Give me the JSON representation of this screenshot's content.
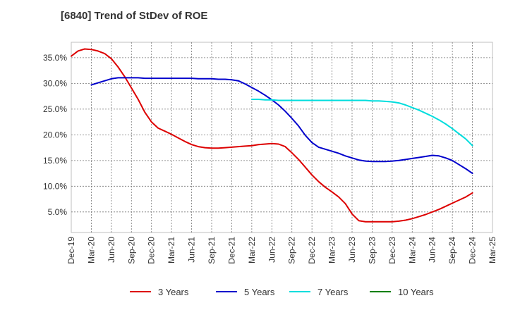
{
  "chart_data": {
    "type": "line",
    "title": "[6840]  Trend of StDev of ROE",
    "xlabel": "",
    "ylabel": "",
    "x_ticks": [
      "Dec-19",
      "Mar-20",
      "Jun-20",
      "Sep-20",
      "Dec-20",
      "Mar-21",
      "Jun-21",
      "Sep-21",
      "Dec-21",
      "Mar-22",
      "Jun-22",
      "Sep-22",
      "Dec-22",
      "Mar-23",
      "Jun-23",
      "Sep-23",
      "Dec-23",
      "Mar-24",
      "Jun-24",
      "Sep-24",
      "Dec-24",
      "Mar-25"
    ],
    "y_ticks": [
      "5.0%",
      "10.0%",
      "15.0%",
      "20.0%",
      "25.0%",
      "30.0%",
      "35.0%"
    ],
    "y_tick_values": [
      5,
      10,
      15,
      20,
      25,
      30,
      35
    ],
    "ylim": [
      1,
      38
    ],
    "grid": true,
    "legend_position": "bottom",
    "series": [
      {
        "name": "3 Years",
        "color": "#dd0000",
        "x": [
          "Dec-19",
          "Jan-20",
          "Feb-20",
          "Mar-20",
          "Apr-20",
          "May-20",
          "Jun-20",
          "Jul-20",
          "Aug-20",
          "Sep-20",
          "Oct-20",
          "Nov-20",
          "Dec-20",
          "Jan-21",
          "Feb-21",
          "Mar-21",
          "Apr-21",
          "May-21",
          "Jun-21",
          "Jul-21",
          "Aug-21",
          "Sep-21",
          "Oct-21",
          "Nov-21",
          "Dec-21",
          "Jan-22",
          "Feb-22",
          "Mar-22",
          "Apr-22",
          "May-22",
          "Jun-22",
          "Jul-22",
          "Aug-22",
          "Sep-22",
          "Oct-22",
          "Nov-22",
          "Dec-22",
          "Jan-23",
          "Feb-23",
          "Mar-23",
          "Apr-23",
          "May-23",
          "Jun-23",
          "Jul-23",
          "Aug-23",
          "Sep-23",
          "Oct-23",
          "Nov-23",
          "Dec-23",
          "Jan-24",
          "Feb-24",
          "Mar-24",
          "Apr-24",
          "May-24",
          "Jun-24",
          "Jul-24",
          "Aug-24",
          "Sep-24",
          "Oct-24",
          "Nov-24",
          "Dec-24"
        ],
        "values": [
          35.3,
          36.3,
          36.7,
          36.6,
          36.3,
          35.8,
          34.8,
          33.2,
          31.3,
          29.1,
          26.9,
          24.4,
          22.5,
          21.3,
          20.7,
          20.1,
          19.4,
          18.7,
          18.1,
          17.7,
          17.5,
          17.4,
          17.4,
          17.5,
          17.6,
          17.7,
          17.8,
          17.9,
          18.1,
          18.2,
          18.3,
          18.2,
          17.7,
          16.5,
          15.2,
          13.7,
          12.2,
          10.9,
          9.8,
          8.9,
          7.9,
          6.6,
          4.6,
          3.3,
          3.1,
          3.1,
          3.1,
          3.1,
          3.1,
          3.2,
          3.4,
          3.7,
          4.1,
          4.5,
          5.0,
          5.5,
          6.1,
          6.7,
          7.3,
          7.9,
          8.7
        ]
      },
      {
        "name": "5 Years",
        "color": "#0000cc",
        "x": [
          "Mar-20",
          "Apr-20",
          "May-20",
          "Jun-20",
          "Jul-20",
          "Aug-20",
          "Sep-20",
          "Oct-20",
          "Nov-20",
          "Dec-20",
          "Jan-21",
          "Feb-21",
          "Mar-21",
          "Apr-21",
          "May-21",
          "Jun-21",
          "Jul-21",
          "Aug-21",
          "Sep-21",
          "Oct-21",
          "Nov-21",
          "Dec-21",
          "Jan-22",
          "Feb-22",
          "Mar-22",
          "Apr-22",
          "May-22",
          "Jun-22",
          "Jul-22",
          "Aug-22",
          "Sep-22",
          "Oct-22",
          "Nov-22",
          "Dec-22",
          "Jan-23",
          "Feb-23",
          "Mar-23",
          "Apr-23",
          "May-23",
          "Jun-23",
          "Jul-23",
          "Aug-23",
          "Sep-23",
          "Oct-23",
          "Nov-23",
          "Dec-23",
          "Jan-24",
          "Feb-24",
          "Mar-24",
          "Apr-24",
          "May-24",
          "Jun-24",
          "Jul-24",
          "Aug-24",
          "Sep-24",
          "Oct-24",
          "Nov-24",
          "Dec-24"
        ],
        "values": [
          29.7,
          30.1,
          30.5,
          30.9,
          31.1,
          31.1,
          31.1,
          31.1,
          31.0,
          31.0,
          31.0,
          31.0,
          31.0,
          31.0,
          31.0,
          31.0,
          30.9,
          30.9,
          30.9,
          30.8,
          30.8,
          30.7,
          30.5,
          29.9,
          29.2,
          28.5,
          27.7,
          26.8,
          25.8,
          24.6,
          23.2,
          21.7,
          19.9,
          18.5,
          17.6,
          17.2,
          16.8,
          16.4,
          15.9,
          15.5,
          15.1,
          14.9,
          14.8,
          14.8,
          14.8,
          14.9,
          15.0,
          15.2,
          15.4,
          15.6,
          15.8,
          16.0,
          15.9,
          15.5,
          15.0,
          14.2,
          13.4,
          12.5
        ]
      },
      {
        "name": "7 Years",
        "color": "#00dddd",
        "x": [
          "Mar-22",
          "Apr-22",
          "May-22",
          "Jun-22",
          "Jul-22",
          "Aug-22",
          "Sep-22",
          "Oct-22",
          "Nov-22",
          "Dec-22",
          "Jan-23",
          "Feb-23",
          "Mar-23",
          "Apr-23",
          "May-23",
          "Jun-23",
          "Jul-23",
          "Aug-23",
          "Sep-23",
          "Oct-23",
          "Nov-23",
          "Dec-23",
          "Jan-24",
          "Feb-24",
          "Mar-24",
          "Apr-24",
          "May-24",
          "Jun-24",
          "Jul-24",
          "Aug-24",
          "Sep-24",
          "Oct-24",
          "Nov-24",
          "Dec-24"
        ],
        "values": [
          26.9,
          26.9,
          26.8,
          26.8,
          26.7,
          26.7,
          26.7,
          26.7,
          26.7,
          26.7,
          26.7,
          26.7,
          26.7,
          26.7,
          26.7,
          26.7,
          26.7,
          26.7,
          26.6,
          26.6,
          26.5,
          26.4,
          26.2,
          25.8,
          25.3,
          24.8,
          24.2,
          23.6,
          22.9,
          22.1,
          21.2,
          20.2,
          19.2,
          17.9
        ]
      },
      {
        "name": "10 Years",
        "color": "#008000",
        "x": [],
        "values": []
      }
    ]
  }
}
